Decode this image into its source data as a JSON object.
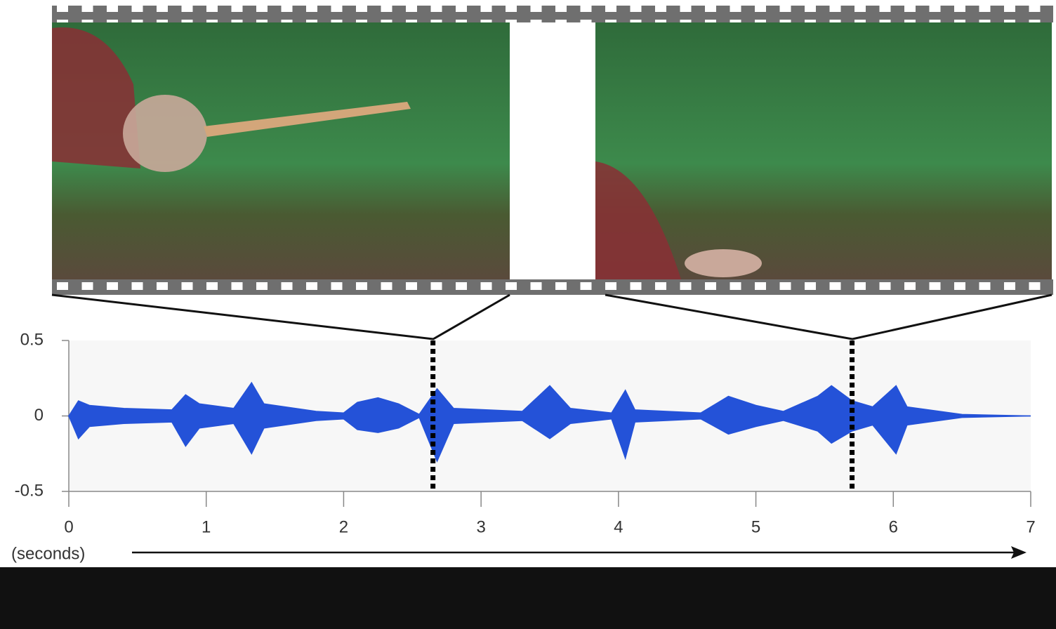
{
  "chart_data": {
    "type": "waveform",
    "x_label": "(seconds)",
    "x": [
      0,
      0.07,
      0.15,
      0.4,
      0.75,
      0.85,
      0.95,
      1.2,
      1.33,
      1.42,
      1.8,
      2.0,
      2.1,
      2.25,
      2.4,
      2.55,
      2.68,
      2.8,
      3.3,
      3.5,
      3.65,
      3.95,
      4.05,
      4.12,
      4.6,
      4.8,
      5.0,
      5.2,
      5.45,
      5.55,
      5.7,
      5.85,
      6.02,
      6.1,
      6.5,
      7
    ],
    "series": [
      {
        "color": "#2452d8",
        "values": [
          0,
          0.1,
          0.07,
          0.05,
          0.04,
          0.14,
          0.08,
          0.05,
          0.22,
          0.08,
          0.03,
          0.02,
          0.09,
          0.12,
          0.08,
          0.01,
          0.18,
          0.05,
          0.03,
          0.2,
          0.05,
          0.02,
          0.17,
          0.04,
          0.02,
          0.13,
          0.07,
          0.03,
          0.13,
          0.2,
          0.1,
          0.06,
          0.2,
          0.06,
          0.01,
          0
        ]
      },
      {
        "color": "#2452d8",
        "values": [
          0,
          -0.15,
          -0.07,
          -0.05,
          -0.04,
          -0.2,
          -0.08,
          -0.05,
          -0.25,
          -0.08,
          -0.03,
          -0.02,
          -0.09,
          -0.11,
          -0.08,
          -0.01,
          -0.3,
          -0.05,
          -0.03,
          -0.15,
          -0.05,
          -0.02,
          -0.28,
          -0.04,
          -0.02,
          -0.12,
          -0.07,
          -0.03,
          -0.1,
          -0.18,
          -0.1,
          -0.06,
          -0.25,
          -0.06,
          -0.01,
          0
        ]
      }
    ],
    "markers": [
      2.65,
      5.7
    ],
    "xlim": [
      0,
      7
    ],
    "xticks": [
      0,
      1,
      2,
      3,
      4,
      5,
      6,
      7
    ],
    "ylim": [
      -0.5,
      0.5
    ],
    "yticks": [
      0.5,
      0,
      -0.5
    ]
  }
}
